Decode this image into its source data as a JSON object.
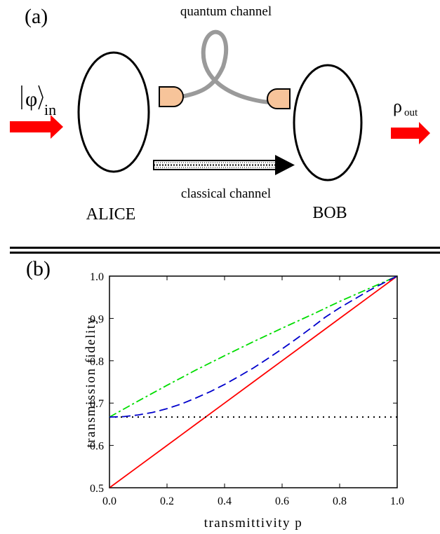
{
  "panel_a": {
    "label": "(a)",
    "quantum_channel_label": "quantum channel",
    "classical_channel_label": "classical channel",
    "alice_label": "ALICE",
    "bob_label": "BOB",
    "input_state": {
      "symbol": "φ",
      "subscript": "in"
    },
    "output_state": {
      "symbol": "ρ",
      "subscript": "out"
    },
    "colors": {
      "arrow": "#ff0000",
      "fiber": "#9a9a9a",
      "coupler_fill": "#f7c49a",
      "ellipse_stroke": "#000000"
    }
  },
  "panel_b": {
    "label": "(b)"
  },
  "chart_data": {
    "type": "line",
    "title": "",
    "xlabel": "transmittivity p",
    "ylabel": "transmission fidelity",
    "xlim": [
      0.0,
      1.0
    ],
    "ylim": [
      0.5,
      1.0
    ],
    "x_ticks": [
      "0.0",
      "0.2",
      "0.4",
      "0.6",
      "0.8",
      "1.0"
    ],
    "y_ticks": [
      "0.5",
      "0.6",
      "0.7",
      "0.8",
      "0.9",
      "1.0"
    ],
    "grid": false,
    "legend": "none",
    "series": [
      {
        "style": "solid",
        "color": "#ff0000",
        "x": [
          0.0,
          0.1,
          0.2,
          0.3,
          0.4,
          0.5,
          0.6,
          0.7,
          0.8,
          0.9,
          1.0
        ],
        "y": [
          0.5,
          0.55,
          0.6,
          0.65,
          0.7,
          0.75,
          0.8,
          0.85,
          0.9,
          0.95,
          1.0
        ]
      },
      {
        "style": "dotted",
        "color": "#000000",
        "x": [
          0.0,
          1.0
        ],
        "y": [
          0.667,
          0.667
        ]
      },
      {
        "style": "dash-dot",
        "color": "#00dd00",
        "x": [
          0.0,
          0.1,
          0.2,
          0.3,
          0.4,
          0.5,
          0.6,
          0.7,
          0.8,
          0.9,
          1.0
        ],
        "y": [
          0.667,
          0.705,
          0.742,
          0.778,
          0.812,
          0.845,
          0.877,
          0.908,
          0.94,
          0.97,
          1.0
        ]
      },
      {
        "style": "dashed",
        "color": "#0000cc",
        "x": [
          0.0,
          0.05,
          0.1,
          0.15,
          0.2,
          0.25,
          0.3,
          0.35,
          0.4,
          0.45,
          0.5,
          0.55,
          0.6,
          0.65,
          0.7,
          0.75,
          0.8,
          0.85,
          0.9,
          0.95,
          1.0
        ],
        "y": [
          0.667,
          0.668,
          0.672,
          0.678,
          0.687,
          0.698,
          0.712,
          0.727,
          0.744,
          0.763,
          0.783,
          0.805,
          0.828,
          0.852,
          0.877,
          0.903,
          0.925,
          0.945,
          0.965,
          0.983,
          1.0
        ]
      }
    ]
  }
}
